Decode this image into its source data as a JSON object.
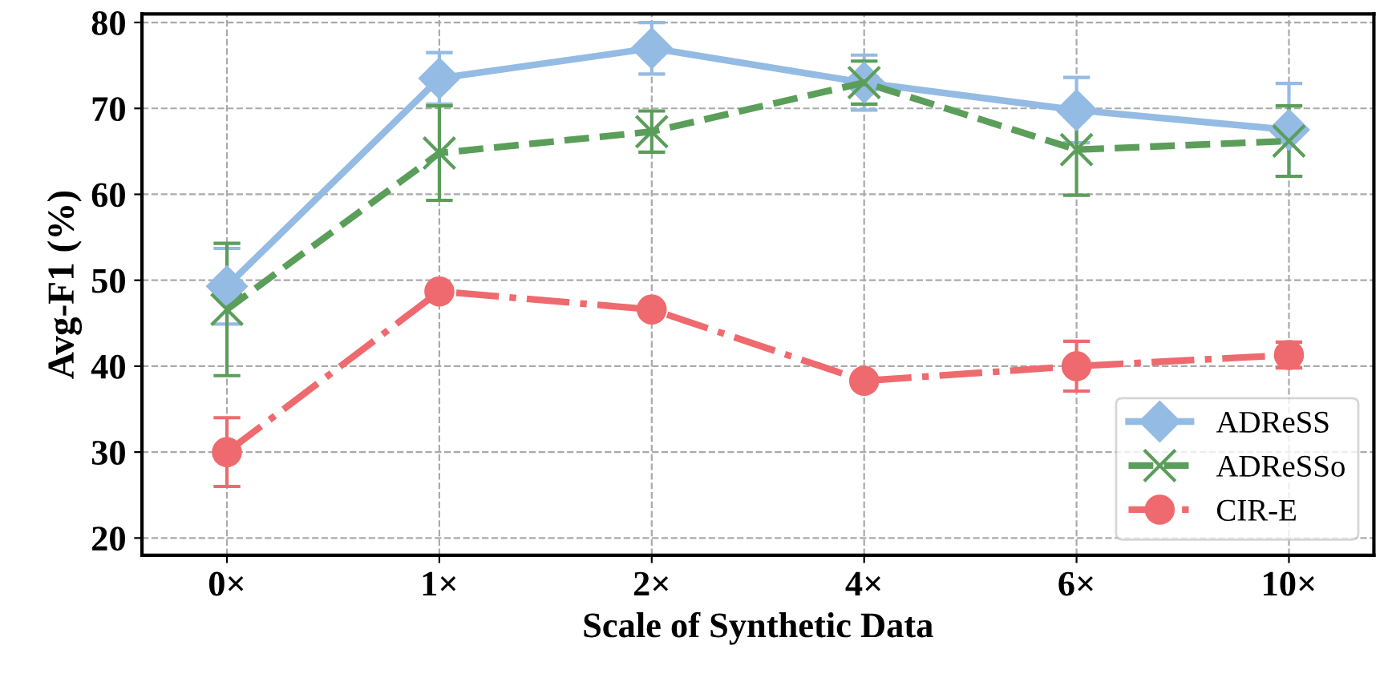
{
  "chart_data": {
    "type": "line",
    "xlabel": "Scale of Synthetic Data",
    "ylabel": "Avg-F1 (%)",
    "categories": [
      "0×",
      "1×",
      "2×",
      "4×",
      "6×",
      "10×"
    ],
    "ylim": [
      18,
      81
    ],
    "yticks": [
      20,
      30,
      40,
      50,
      60,
      70,
      80
    ],
    "grid": true,
    "legend": "bottom right",
    "series": [
      {
        "name": "ADReSS",
        "color": "#94bbe3",
        "marker": "diamond",
        "line_style": "solid",
        "values": [
          49.3,
          73.5,
          77.0,
          73.0,
          69.8,
          67.5
        ],
        "errors": [
          4.4,
          3.0,
          3.0,
          3.2,
          3.8,
          5.4
        ]
      },
      {
        "name": "ADReSSo",
        "color": "#5a9e5a",
        "marker": "cross",
        "line_style": "dashed",
        "values": [
          46.6,
          64.8,
          67.3,
          73.0,
          65.2,
          66.2
        ],
        "errors": [
          7.7,
          5.5,
          2.4,
          2.5,
          5.3,
          4.1
        ]
      },
      {
        "name": "CIR-E",
        "color": "#ee6a6e",
        "marker": "circle",
        "line_style": "dashdot",
        "values": [
          30.0,
          48.7,
          46.6,
          38.3,
          40.0,
          41.3
        ],
        "errors": [
          4.0,
          0.5,
          0.5,
          0.5,
          2.9,
          1.5
        ]
      }
    ]
  }
}
